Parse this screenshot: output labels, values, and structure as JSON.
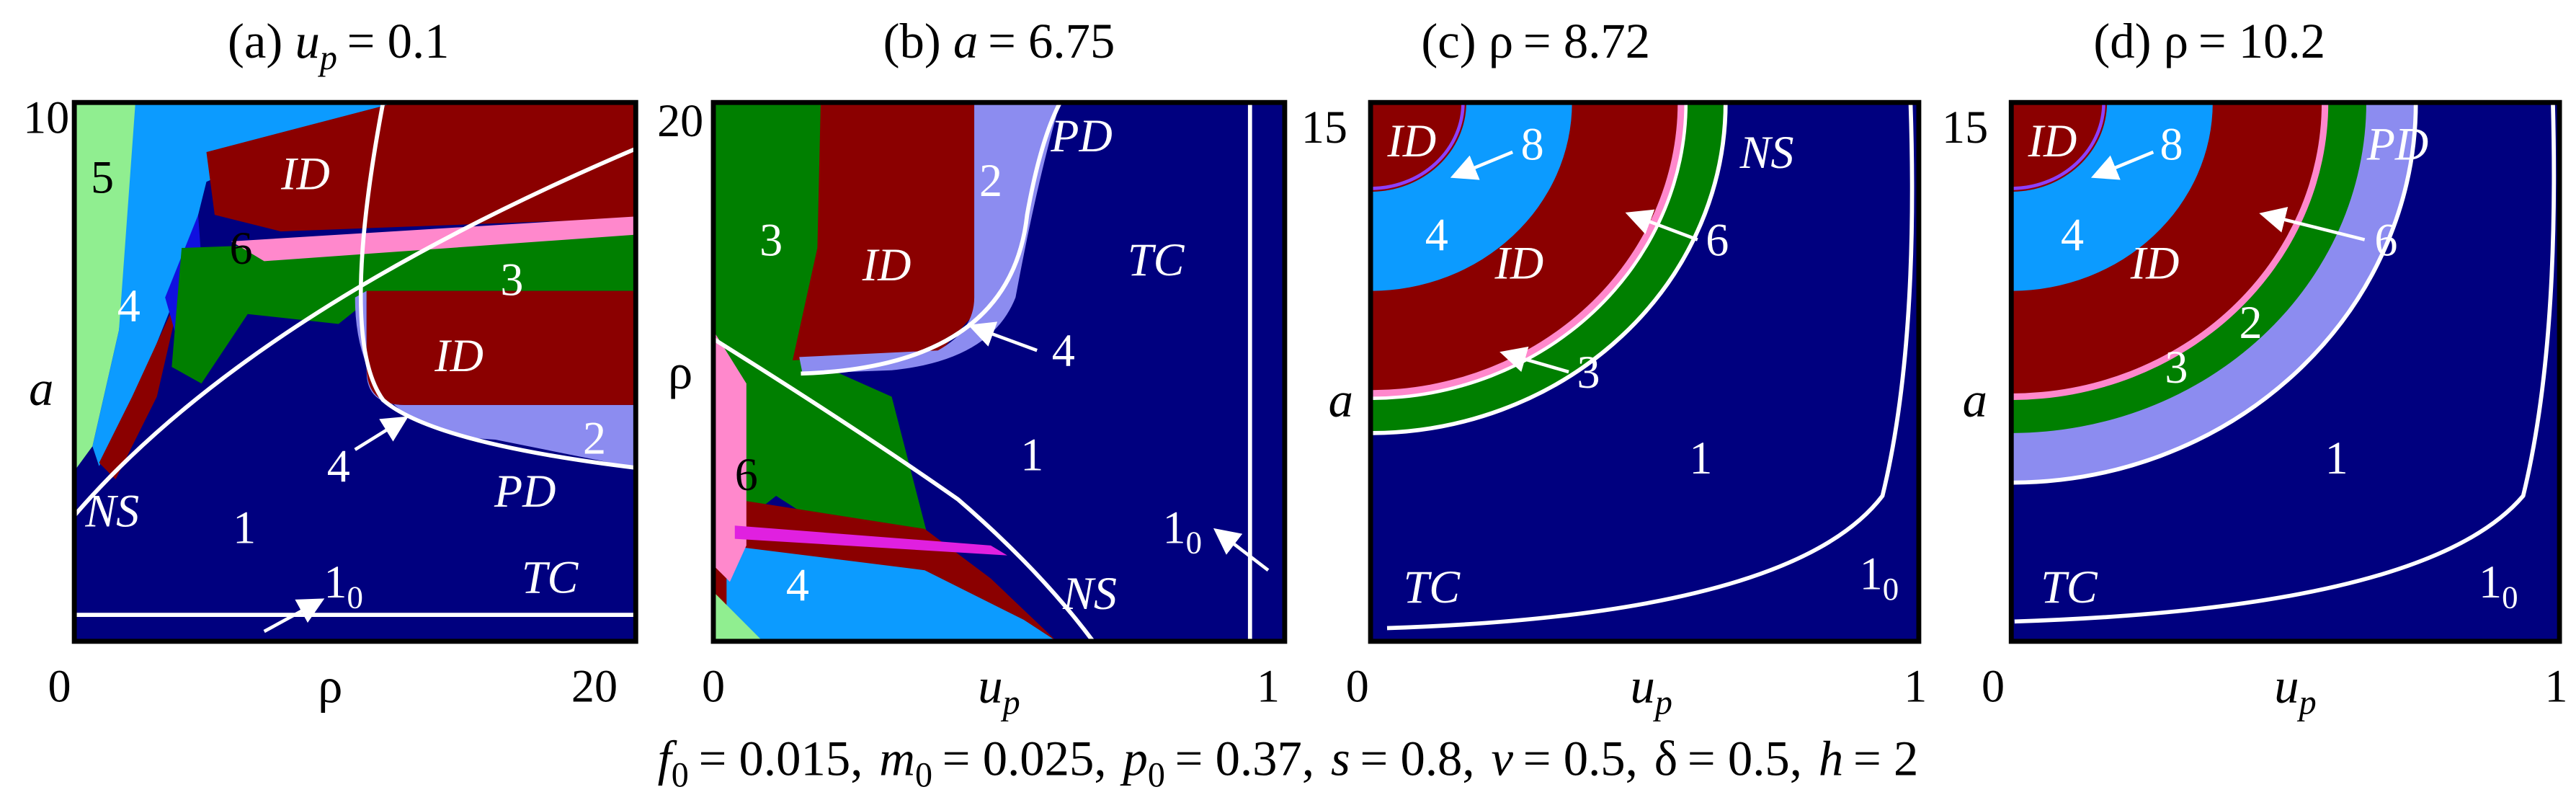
{
  "panels": [
    {
      "title": {
        "label": "(a)",
        "param": "u",
        "sub": "p",
        "value": "= 0.1"
      },
      "x_label": {
        "text": "ρ"
      },
      "y_label": {
        "text": "a"
      },
      "x_ticks": [
        "0",
        "20"
      ],
      "y_ticks": [
        "10"
      ],
      "regions": [
        {
          "text": "5"
        },
        {
          "text": "4"
        },
        {
          "text": "6"
        },
        {
          "text": "ID"
        },
        {
          "text": "3"
        },
        {
          "text": "ID"
        },
        {
          "text": "2"
        },
        {
          "text": "4"
        },
        {
          "text": "PD"
        },
        {
          "text": "NS"
        },
        {
          "text": "1"
        },
        {
          "text": "1",
          "sub": "0"
        },
        {
          "text": "TC"
        }
      ]
    },
    {
      "title": {
        "label": "(b)",
        "param": "a",
        "value": "= 6.75"
      },
      "x_label": {
        "text": "u",
        "sub": "p"
      },
      "y_label": {
        "text": "ρ"
      },
      "x_ticks": [
        "0",
        "1"
      ],
      "y_ticks": [
        "20"
      ],
      "regions": [
        {
          "text": "3"
        },
        {
          "text": "ID"
        },
        {
          "text": "2"
        },
        {
          "text": "PD"
        },
        {
          "text": "TC"
        },
        {
          "text": "4"
        },
        {
          "text": "1"
        },
        {
          "text": "1",
          "sub": "0"
        },
        {
          "text": "6"
        },
        {
          "text": "4"
        },
        {
          "text": "NS"
        }
      ]
    },
    {
      "title": {
        "label": "(c)",
        "param": "ρ",
        "value": "= 8.72"
      },
      "x_label": {
        "text": "u",
        "sub": "p"
      },
      "y_label": {
        "text": "a"
      },
      "x_ticks": [
        "0",
        "1"
      ],
      "y_ticks": [
        "15"
      ],
      "regions": [
        {
          "text": "ID"
        },
        {
          "text": "8"
        },
        {
          "text": "NS"
        },
        {
          "text": "4"
        },
        {
          "text": "ID"
        },
        {
          "text": "6"
        },
        {
          "text": "3"
        },
        {
          "text": "1"
        },
        {
          "text": "TC"
        },
        {
          "text": "1",
          "sub": "0"
        }
      ]
    },
    {
      "title": {
        "label": "(d)",
        "param": "ρ",
        "value": "= 10.2"
      },
      "x_label": {
        "text": "u",
        "sub": "p"
      },
      "y_label": {
        "text": "a"
      },
      "x_ticks": [
        "0",
        "1"
      ],
      "y_ticks": [
        "15"
      ],
      "regions": [
        {
          "text": "ID"
        },
        {
          "text": "8"
        },
        {
          "text": "PD"
        },
        {
          "text": "4"
        },
        {
          "text": "ID"
        },
        {
          "text": "6"
        },
        {
          "text": "2"
        },
        {
          "text": "3"
        },
        {
          "text": "1"
        },
        {
          "text": "TC"
        },
        {
          "text": "1",
          "sub": "0"
        }
      ]
    }
  ],
  "caption": [
    {
      "sym": "f",
      "sub": "0",
      "val": "= 0.015,"
    },
    {
      "sym": "m",
      "sub": "0",
      "val": "= 0.025,"
    },
    {
      "sym": "p",
      "sub": "0",
      "val": "= 0.37,"
    },
    {
      "sym": "s",
      "val": "= 0.8,"
    },
    {
      "sym": "v",
      "val": "= 0.5,"
    },
    {
      "sym": "δ",
      "val": "= 0.5,"
    },
    {
      "sym": "h",
      "val": "= 2"
    }
  ]
}
